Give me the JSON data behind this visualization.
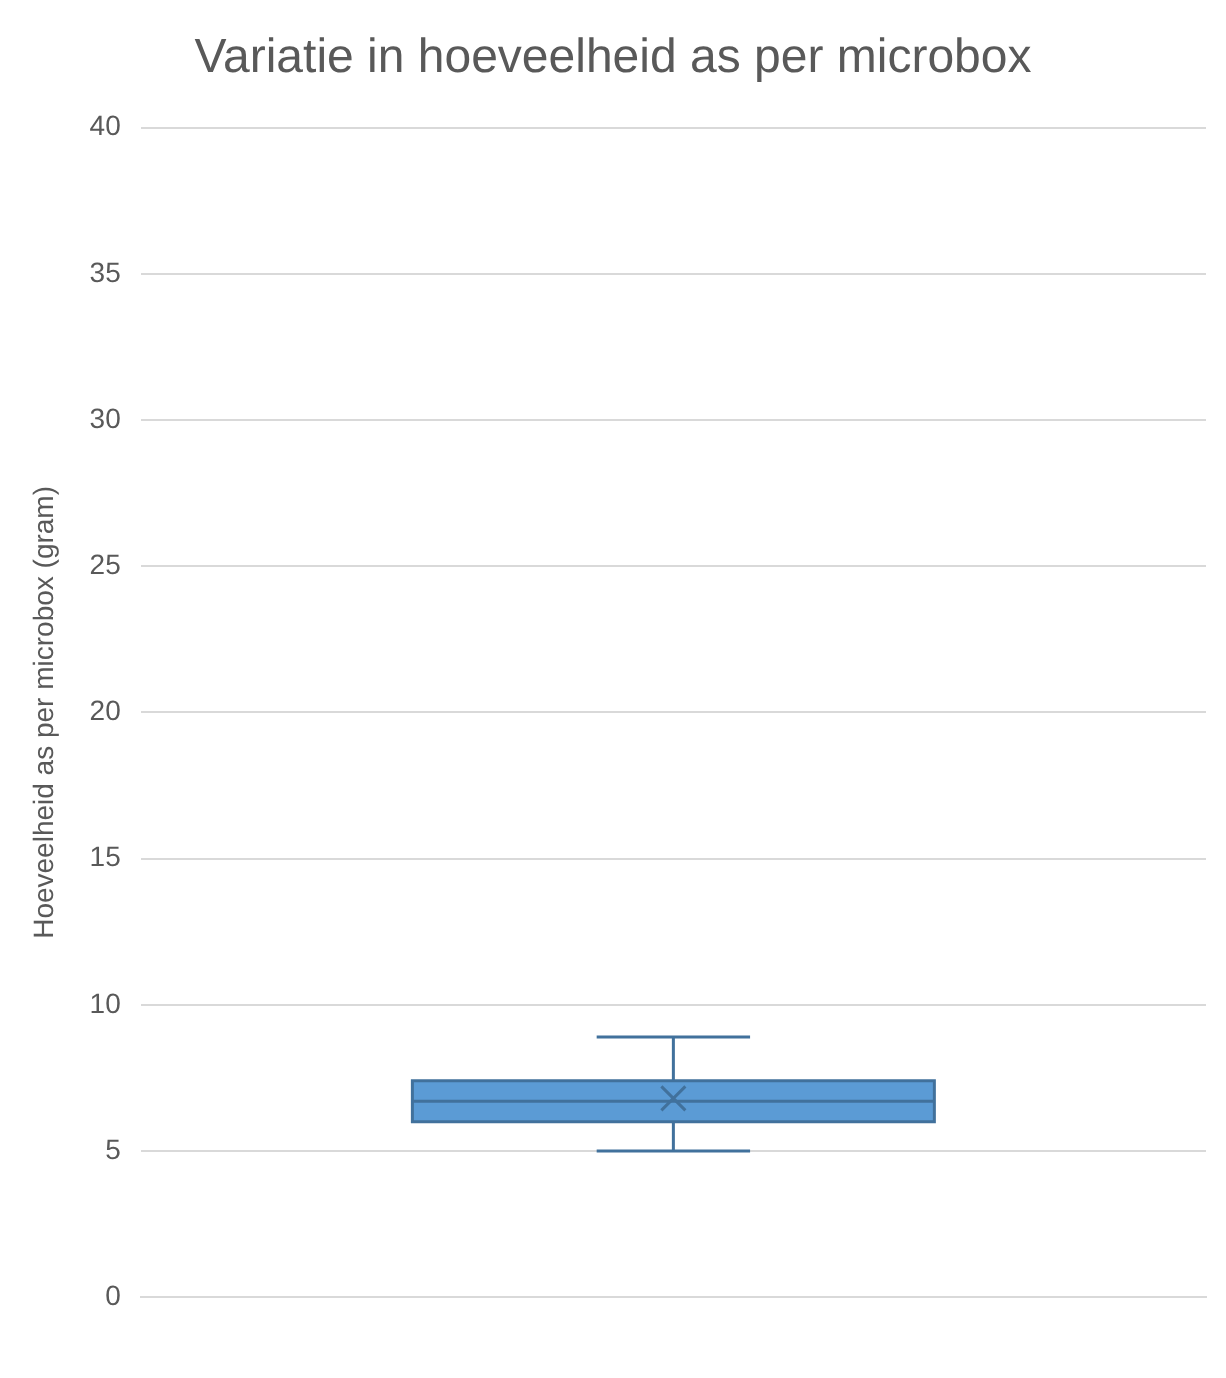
{
  "chart_data": {
    "type": "box",
    "title": "Variatie in hoeveelheid as per microbox",
    "ylabel": "Hoeveelheid as per microbox (gram)",
    "categories": [
      null
    ],
    "series": [
      {
        "color": "#5b9bd5",
        "boxes": [
          {
            "low": 5.0,
            "q1": 6.0,
            "median": 6.7,
            "q3": 7.4,
            "high": 8.9,
            "mean": 6.8
          }
        ]
      }
    ],
    "ylim": [
      0,
      40
    ],
    "yticks": [
      0,
      5,
      10,
      15,
      20,
      25,
      30,
      35,
      40
    ],
    "grid": "y",
    "legend": false
  }
}
